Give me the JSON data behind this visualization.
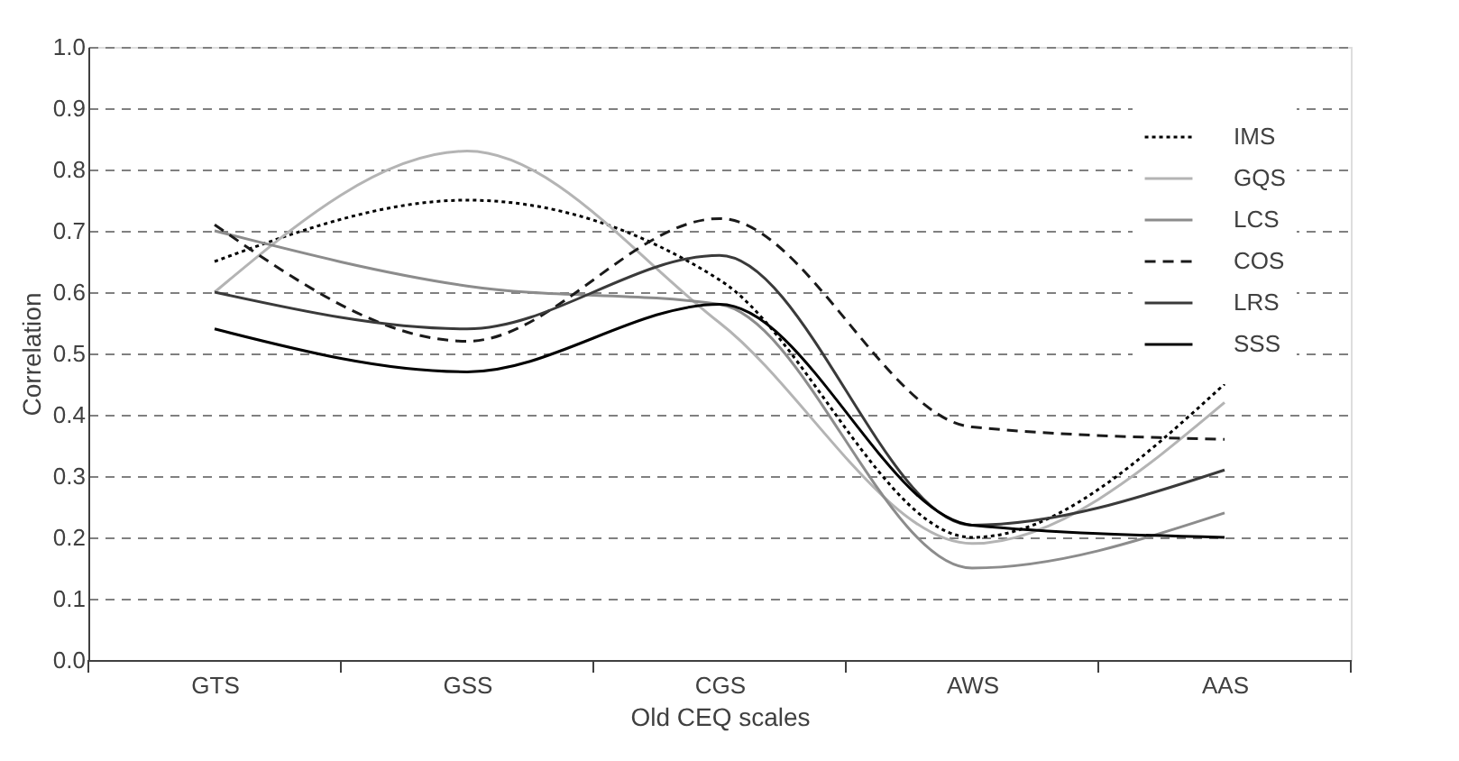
{
  "chart_data": {
    "type": "line",
    "xlabel": "Old CEQ scales",
    "ylabel": "Correlation",
    "categories": [
      "GTS",
      "GSS",
      "CGS",
      "AWS",
      "AAS"
    ],
    "series": [
      {
        "name": "IMS",
        "color": "#000000",
        "line_style": "dotted",
        "values": [
          0.65,
          0.75,
          0.62,
          0.2,
          0.45
        ]
      },
      {
        "name": "GQS",
        "color": "#b4b4b4",
        "line_style": "solid",
        "values": [
          0.6,
          0.83,
          0.55,
          0.19,
          0.42
        ]
      },
      {
        "name": "LCS",
        "color": "#8c8c8c",
        "line_style": "solid",
        "values": [
          0.7,
          0.61,
          0.58,
          0.15,
          0.24
        ]
      },
      {
        "name": "COS",
        "color": "#1a1a1a",
        "line_style": "dashed",
        "values": [
          0.71,
          0.52,
          0.72,
          0.38,
          0.36
        ]
      },
      {
        "name": "LRS",
        "color": "#3a3a3a",
        "line_style": "solid",
        "values": [
          0.6,
          0.54,
          0.66,
          0.22,
          0.31
        ]
      },
      {
        "name": "SSS",
        "color": "#000000",
        "line_style": "solid",
        "values": [
          0.54,
          0.47,
          0.58,
          0.22,
          0.2
        ]
      }
    ],
    "ylim": [
      0,
      1
    ],
    "yticks": [
      {
        "value": 0,
        "label": "0.0"
      },
      {
        "value": 0.1,
        "label": "0.1"
      },
      {
        "value": 0.2,
        "label": "0.2"
      },
      {
        "value": 0.3,
        "label": "0.3"
      },
      {
        "value": 0.4,
        "label": "0.4"
      },
      {
        "value": 0.5,
        "label": "0.5"
      },
      {
        "value": 0.6,
        "label": "0.6"
      },
      {
        "value": 0.7,
        "label": "0.7"
      },
      {
        "value": 0.8,
        "label": "0.8"
      },
      {
        "value": 0.9,
        "label": "0.9"
      },
      {
        "value": 1,
        "label": "1.0"
      }
    ],
    "grid": "y",
    "legend": "top right",
    "marker": "none"
  }
}
